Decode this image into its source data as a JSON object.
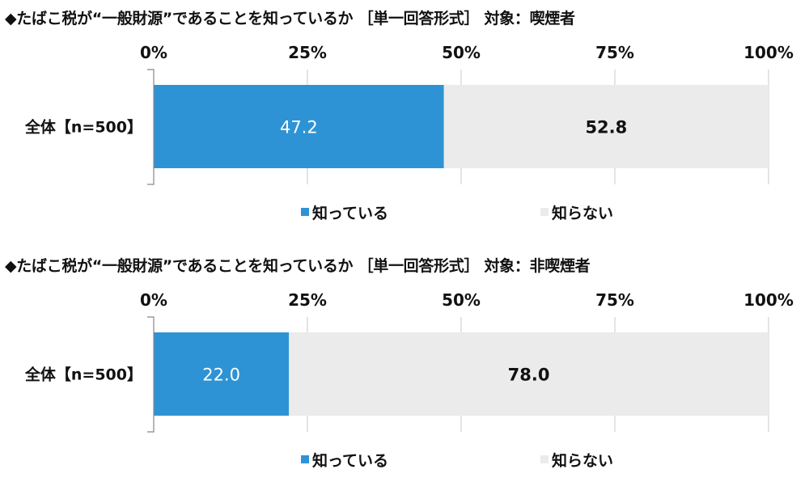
{
  "chart_data": [
    {
      "type": "bar",
      "orientation": "horizontal",
      "stacked": true,
      "title": "◆たばこ税が“一般財源”であることを知っているか ［単一回答形式］ 対象：喫煙者",
      "categories": [
        "全体【n=500】"
      ],
      "series": [
        {
          "name": "知っている",
          "values": [
            47.2
          ],
          "color": "#2e93d4",
          "label_color": "#ffffff"
        },
        {
          "name": "知らない",
          "values": [
            52.8
          ],
          "color": "#ebebeb",
          "label_color": "#111111"
        }
      ],
      "x_ticks": [
        "0%",
        "25%",
        "50%",
        "75%",
        "100%"
      ],
      "xlim": [
        0,
        100
      ],
      "grid": true,
      "legend_position": "bottom"
    },
    {
      "type": "bar",
      "orientation": "horizontal",
      "stacked": true,
      "title": "◆たばこ税が“一般財源”であることを知っているか ［単一回答形式］ 対象：非喫煙者",
      "categories": [
        "全体【n=500】"
      ],
      "series": [
        {
          "name": "知っている",
          "values": [
            22.0
          ],
          "color": "#2e93d4",
          "label_color": "#ffffff"
        },
        {
          "name": "知らない",
          "values": [
            78.0
          ],
          "color": "#ebebeb",
          "label_color": "#111111"
        }
      ],
      "x_ticks": [
        "0%",
        "25%",
        "50%",
        "75%",
        "100%"
      ],
      "xlim": [
        0,
        100
      ],
      "grid": true,
      "legend_position": "bottom"
    }
  ]
}
